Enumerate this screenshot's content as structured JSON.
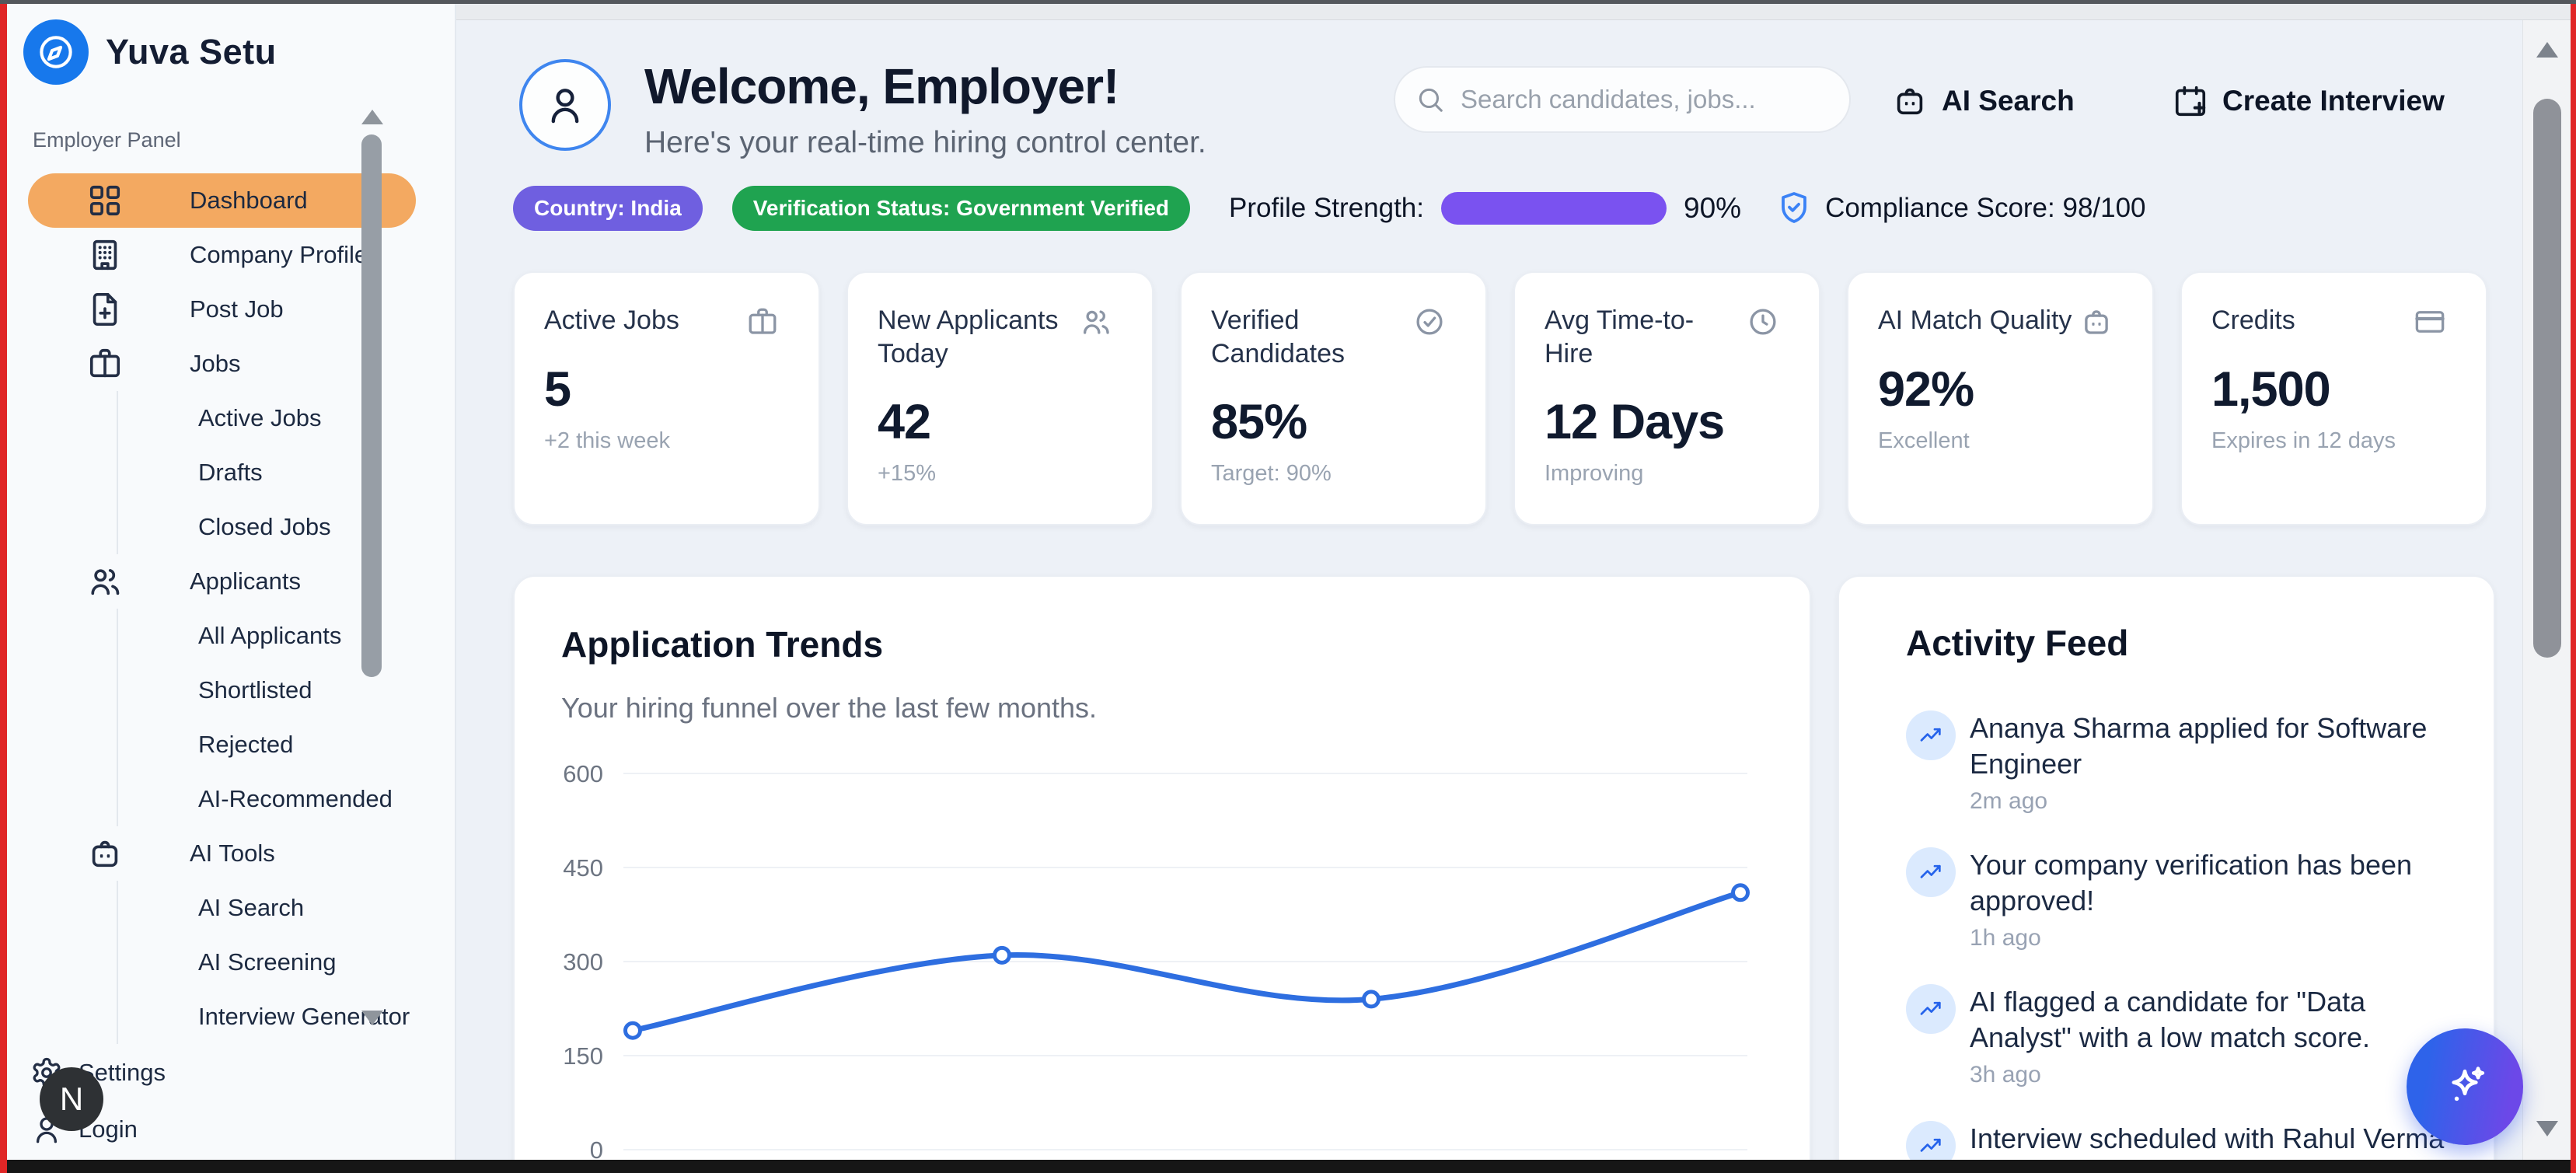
{
  "brand": {
    "name": "Yuva Setu"
  },
  "sidebar": {
    "section_label": "Employer Panel",
    "items": [
      {
        "label": "Dashboard",
        "icon": "grid",
        "active": true
      },
      {
        "label": "Company Profile",
        "icon": "building"
      },
      {
        "label": "Post Job",
        "icon": "file-plus"
      },
      {
        "label": "Jobs",
        "icon": "briefcase"
      },
      {
        "label": "Active Jobs",
        "indent": true
      },
      {
        "label": "Drafts",
        "indent": true
      },
      {
        "label": "Closed Jobs",
        "indent": true
      },
      {
        "label": "Applicants",
        "icon": "users"
      },
      {
        "label": "All Applicants",
        "indent": true
      },
      {
        "label": "Shortlisted",
        "indent": true
      },
      {
        "label": "Rejected",
        "indent": true
      },
      {
        "label": "AI-Recommended",
        "indent": true
      },
      {
        "label": "AI Tools",
        "icon": "bot"
      },
      {
        "label": "AI Search",
        "indent": true
      },
      {
        "label": "AI Screening",
        "indent": true
      },
      {
        "label": "Interview Generator",
        "indent": true
      }
    ],
    "footer_items": [
      {
        "label": "Settings",
        "icon": "gear"
      },
      {
        "label": "Login",
        "icon": "user"
      }
    ],
    "avatar_initial": "N"
  },
  "header": {
    "title": "Welcome, Employer!",
    "subtitle": "Here's your real-time hiring control center.",
    "search_placeholder": "Search candidates, jobs...",
    "ai_search_label": "AI Search",
    "create_interview_label": "Create Interview"
  },
  "status_bar": {
    "country_badge": "Country: India",
    "verification_badge": "Verification Status: Government Verified",
    "profile_strength_label": "Profile Strength:",
    "profile_strength_value": 90,
    "profile_strength_text": "90%",
    "compliance_text": "Compliance Score: 98/100"
  },
  "stat_cards": [
    {
      "title": "Active Jobs",
      "icon": "briefcase",
      "value": "5",
      "sub": "+2 this week"
    },
    {
      "title": "New Applicants Today",
      "icon": "users",
      "value": "42",
      "sub": "+15%"
    },
    {
      "title": "Verified Candidates",
      "icon": "check-circle",
      "value": "85%",
      "sub": "Target: 90%"
    },
    {
      "title": "Avg Time-to-Hire",
      "icon": "clock",
      "value": "12 Days",
      "sub": "Improving"
    },
    {
      "title": "AI Match Quality",
      "icon": "bot",
      "value": "92%",
      "sub": "Excellent"
    },
    {
      "title": "Credits",
      "icon": "credit-card",
      "value": "1,500",
      "sub": "Expires in 12 days"
    }
  ],
  "trends": {
    "title": "Application Trends",
    "subtitle": "Your hiring funnel over the last few months."
  },
  "chart_data": {
    "type": "line",
    "title": "Application Trends",
    "values": [
      190,
      310,
      240,
      410
    ],
    "x_tick_labels_visible": false,
    "yticks": [
      0,
      150,
      300,
      450,
      600
    ],
    "ylim": [
      0,
      600
    ],
    "line_color": "#2e6ee0",
    "marker": "open-circle",
    "grid": true,
    "legend": false
  },
  "activity": {
    "title": "Activity Feed",
    "items": [
      {
        "text": "Ananya Sharma applied for Software Engineer",
        "time": "2m ago"
      },
      {
        "text": "Your company verification has been approved!",
        "time": "1h ago"
      },
      {
        "text": "AI flagged a candidate for \"Data Analyst\" with a low match score.",
        "time": "3h ago"
      },
      {
        "text": "Interview scheduled with Rahul Verma for tomorrow.",
        "time": ""
      }
    ]
  },
  "colors": {
    "accent_orange": "#f3a961",
    "badge_purple": "#6f5fe0",
    "badge_green": "#1fa350",
    "progress_blue": "#2563eb",
    "progress_purple": "#7a52f0",
    "logo_blue": "#1778ec",
    "chart_line_blue": "#2e6ee0",
    "fab_gradient_start": "#2e63ea",
    "fab_gradient_end": "#6c48e8",
    "frame_red": "#e02626"
  }
}
